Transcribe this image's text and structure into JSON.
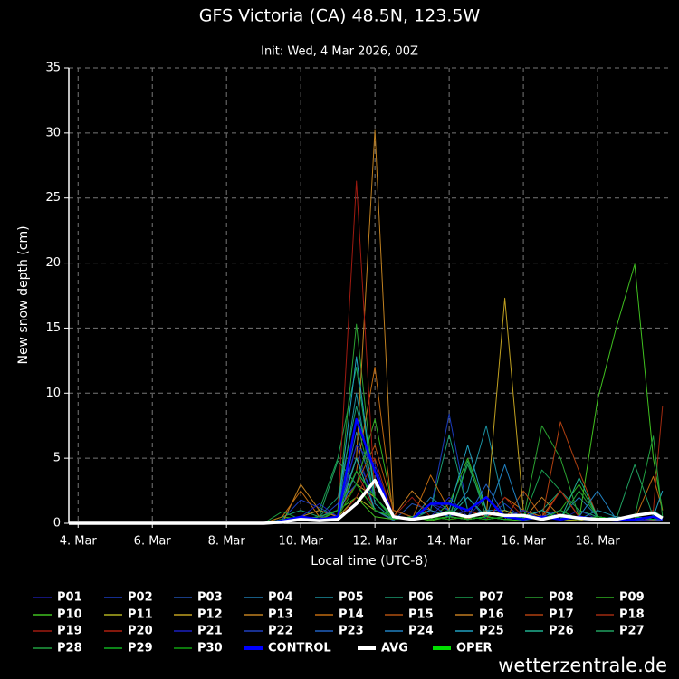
{
  "chart_data": {
    "type": "line",
    "title": "GFS Victoria (CA) 48.5N, 123.5W",
    "subtitle": "Init: Wed, 4 Mar 2026, 00Z",
    "x_label": "Local time (UTC-8)",
    "y_label": "New snow depth (cm)",
    "watermark": "wetterzentrale.de",
    "x": [
      3.75,
      9,
      9.5,
      10,
      10.5,
      11,
      11.5,
      12,
      12.5,
      13,
      13.5,
      14,
      14.5,
      15,
      15.5,
      16,
      16.5,
      17,
      17.5,
      18,
      18.5,
      19,
      19.5,
      19.75
    ],
    "xlim": [
      3.75,
      19.95
    ],
    "xticks": [
      {
        "value": 4,
        "label": "4. Mar"
      },
      {
        "value": 6,
        "label": "6. Mar"
      },
      {
        "value": 8,
        "label": "8. Mar"
      },
      {
        "value": 10,
        "label": "10. Mar"
      },
      {
        "value": 12,
        "label": "12. Mar"
      },
      {
        "value": 14,
        "label": "14. Mar"
      },
      {
        "value": 16,
        "label": "16. Mar"
      },
      {
        "value": 18,
        "label": "18. Mar"
      }
    ],
    "ylim": [
      0,
      35
    ],
    "yticks": [
      0,
      5,
      10,
      15,
      20,
      25,
      30,
      35
    ],
    "grid": true,
    "series": [
      {
        "name": "P01",
        "color": "#1a1aa0",
        "values": [
          0,
          0,
          0.2,
          0.5,
          0.3,
          1,
          6,
          1,
          0.5,
          0.3,
          1.5,
          1,
          0.5,
          2,
          0.5,
          0.3,
          0.5,
          0.3,
          1,
          0.3,
          0.2,
          0.5,
          0.3,
          0.5
        ]
      },
      {
        "name": "P02",
        "color": "#1a3cc0",
        "values": [
          0,
          0,
          0.3,
          1.8,
          1.2,
          0.5,
          5,
          2,
          0.3,
          0.5,
          1,
          8.4,
          1,
          0.5,
          1.5,
          0.3,
          1,
          0.5,
          0.3,
          0.5,
          0.3,
          0.2,
          0.3,
          0.5
        ]
      },
      {
        "name": "P03",
        "color": "#2050b0",
        "values": [
          0,
          0,
          0,
          0.5,
          1,
          0.5,
          4,
          1,
          0.2,
          1.5,
          1,
          0.5,
          2,
          0.3,
          0.5,
          1,
          0.3,
          0.5,
          0.3,
          0.2,
          0.3,
          0.5,
          0.2,
          0.3
        ]
      },
      {
        "name": "P04",
        "color": "#1f7ab0",
        "values": [
          0,
          0,
          0.2,
          0.5,
          0.3,
          0.5,
          7,
          2,
          0.5,
          0.3,
          2,
          1,
          0.5,
          1,
          1,
          0.5,
          0.3,
          0.5,
          2,
          0.5,
          0.3,
          0.5,
          0.3,
          0.3
        ]
      },
      {
        "name": "P05",
        "color": "#1a90a0",
        "values": [
          0,
          0,
          0,
          0.3,
          0.5,
          1,
          10,
          1.5,
          0.3,
          0.5,
          1,
          0.5,
          2.5,
          7.5,
          1,
          0.5,
          0.3,
          0.5,
          0.3,
          1,
          0.5,
          0.3,
          0.5,
          0.3
        ]
      },
      {
        "name": "P06",
        "color": "#1a9a70",
        "values": [
          0,
          0,
          0.5,
          1,
          0.5,
          2,
          9,
          3,
          0.5,
          0.3,
          1,
          6.8,
          1,
          0.5,
          0.3,
          0.5,
          1,
          2.5,
          1,
          0.5,
          0.3,
          0.5,
          1,
          0.5
        ]
      },
      {
        "name": "P07",
        "color": "#1aa050",
        "values": [
          0,
          0,
          0.3,
          0.5,
          1,
          5,
          12,
          2,
          0.3,
          0.5,
          1,
          0.5,
          4.5,
          1,
          0.5,
          0.3,
          4.1,
          2.5,
          0.5,
          0.3,
          0.5,
          0.3,
          0.5,
          0.3
        ]
      },
      {
        "name": "P08",
        "color": "#2aa030",
        "values": [
          0,
          0,
          0.2,
          0.3,
          0.5,
          1,
          15.3,
          2,
          0.5,
          0.3,
          0.5,
          1,
          0.5,
          0.3,
          0.5,
          0.3,
          7.5,
          5,
          0.5,
          0.3,
          0.5,
          0.3,
          0.5,
          0.3
        ]
      },
      {
        "name": "P09",
        "color": "#30b020",
        "values": [
          0,
          0,
          0.5,
          0.3,
          0.5,
          1,
          3,
          8,
          1,
          0.5,
          0.3,
          1.5,
          5,
          1,
          0.5,
          0.3,
          0.5,
          1,
          3,
          0.5,
          0.3,
          0.5,
          0.3,
          0.2
        ]
      },
      {
        "name": "P10",
        "color": "#40c020",
        "values": [
          0,
          0,
          0.3,
          0.5,
          0.2,
          1,
          2,
          0.5,
          0.3,
          0.5,
          0.2,
          0.5,
          0.3,
          0.5,
          0.3,
          0.2,
          0.5,
          0.3,
          0.2,
          9.5,
          15,
          19.9,
          5,
          1
        ]
      },
      {
        "name": "P11",
        "color": "#b0b020",
        "values": [
          0,
          0,
          0.2,
          0.5,
          0.3,
          0.5,
          2,
          1,
          0.5,
          0.3,
          0.5,
          1,
          0.3,
          0.5,
          1,
          0.3,
          0.5,
          0.3,
          0.2,
          0.5,
          0.3,
          0.2,
          0.5,
          0.3
        ]
      },
      {
        "name": "P12",
        "color": "#c0a020",
        "values": [
          0,
          0,
          0.2,
          0.3,
          0.5,
          1,
          3,
          2,
          0.3,
          0.5,
          0.3,
          0.5,
          1,
          0.5,
          17.3,
          1,
          0.5,
          0.3,
          0.5,
          0.3,
          0.2,
          0.3,
          0.5,
          0.3
        ]
      },
      {
        "name": "P13",
        "color": "#c08020",
        "values": [
          0,
          0,
          0,
          3,
          1,
          0.5,
          5,
          30.2,
          1,
          0.5,
          0.3,
          0.5,
          0.3,
          1,
          0.5,
          0.3,
          0.5,
          0.3,
          0.5,
          0.3,
          0.2,
          0.3,
          0.2,
          0.3
        ]
      },
      {
        "name": "P14",
        "color": "#c06a10",
        "values": [
          0,
          0,
          0.5,
          2.5,
          0.5,
          1,
          4,
          12,
          0.5,
          0.3,
          3.7,
          1,
          0.5,
          0.3,
          2,
          1,
          0.5,
          2.5,
          0.5,
          0.3,
          0.5,
          0.3,
          3.6,
          1
        ]
      },
      {
        "name": "P15",
        "color": "#b05010",
        "values": [
          0,
          0,
          0.3,
          0.5,
          0.3,
          0.5,
          3,
          6,
          1,
          0.5,
          0.3,
          0.5,
          0.3,
          0.5,
          0.3,
          2.5,
          0.5,
          0.3,
          0.5,
          0.3,
          0.2,
          0.3,
          0.5,
          0.3
        ]
      },
      {
        "name": "P16",
        "color": "#c07a20",
        "values": [
          0,
          0,
          0.2,
          0.5,
          1,
          0.5,
          4,
          2,
          0.5,
          2.5,
          1,
          0.5,
          0.3,
          1,
          0.5,
          0.3,
          2,
          0.5,
          0.3,
          0.5,
          0.2,
          0.3,
          0.5,
          0.3
        ]
      },
      {
        "name": "P17",
        "color": "#b04010",
        "values": [
          0,
          0,
          0,
          0.3,
          0.5,
          1,
          3,
          1,
          0.5,
          0.3,
          0.5,
          0.3,
          0.5,
          0.3,
          0.5,
          1,
          0.3,
          7.8,
          4,
          0.5,
          0.3,
          0.5,
          0.3,
          0.5
        ]
      },
      {
        "name": "P18",
        "color": "#a02a10",
        "values": [
          0,
          0,
          0.2,
          0.3,
          0.5,
          0.3,
          2,
          5,
          0.5,
          0.3,
          0.5,
          0.3,
          0.5,
          0.3,
          0.5,
          0.3,
          0.5,
          0.3,
          0.5,
          0.3,
          0.2,
          0.5,
          1,
          9
        ]
      },
      {
        "name": "P19",
        "color": "#a01a10",
        "values": [
          0,
          0,
          0.3,
          0.5,
          0.3,
          1,
          26.3,
          2,
          0.5,
          2,
          0.5,
          0.3,
          0.5,
          0.3,
          2,
          0.5,
          0.3,
          0.5,
          0.3,
          0.5,
          0.3,
          0.2,
          0.3,
          0.5
        ]
      },
      {
        "name": "P20",
        "color": "#b02010",
        "values": [
          0,
          0,
          0.2,
          0.3,
          0.5,
          1,
          4,
          1,
          0.3,
          0.5,
          0.3,
          0.5,
          1,
          0.5,
          0.3,
          0.5,
          0.3,
          2.5,
          0.5,
          0.3,
          0.5,
          0.3,
          0.5,
          0.3
        ]
      },
      {
        "name": "P21",
        "color": "#1a20c0",
        "values": [
          0,
          0,
          0.2,
          0.5,
          1.5,
          0.5,
          6,
          4.5,
          0.5,
          0.3,
          0.5,
          2,
          0.5,
          0.3,
          0.5,
          1,
          0.3,
          0.5,
          0.3,
          0.5,
          0.3,
          0.2,
          0.3,
          0.5
        ]
      },
      {
        "name": "P22",
        "color": "#2040c0",
        "values": [
          0,
          0,
          0.3,
          0.5,
          0.3,
          1.5,
          3,
          1,
          0.5,
          0.3,
          1.5,
          0.5,
          1,
          2,
          0.5,
          0.3,
          0.5,
          0.3,
          0.5,
          0.3,
          0.2,
          0.5,
          0.3,
          0.2
        ]
      },
      {
        "name": "P23",
        "color": "#2060c0",
        "values": [
          0,
          0,
          0.2,
          0.3,
          0.5,
          1,
          5,
          1,
          0.5,
          0.3,
          0.5,
          1,
          0.5,
          3,
          0.5,
          0.3,
          0.5,
          1,
          0.3,
          0.5,
          0.3,
          0.2,
          0.5,
          0.3
        ]
      },
      {
        "name": "P24",
        "color": "#2080c0",
        "values": [
          0,
          0,
          0,
          0.5,
          0.3,
          0.5,
          4,
          2,
          0.3,
          0.5,
          1,
          0.5,
          0.3,
          0.5,
          4.5,
          0.3,
          0.5,
          0.3,
          0.5,
          2.5,
          0.3,
          0.5,
          0.3,
          0.5
        ]
      },
      {
        "name": "P25",
        "color": "#20a0c0",
        "values": [
          0,
          0,
          0.2,
          0.3,
          0.5,
          1,
          12.8,
          2,
          0.5,
          0.3,
          0.5,
          1,
          6,
          1,
          0.5,
          0.3,
          0.5,
          0.3,
          0.5,
          0.3,
          0.5,
          0.3,
          0.5,
          2.5
        ]
      },
      {
        "name": "P26",
        "color": "#20b090",
        "values": [
          0,
          0,
          0.3,
          0.5,
          0.3,
          0.5,
          5,
          1,
          0.3,
          0.5,
          0.3,
          0.5,
          2,
          0.5,
          0.3,
          0.5,
          1,
          0.3,
          3.5,
          0.5,
          0.3,
          0.5,
          0.3,
          0.5
        ]
      },
      {
        "name": "P27",
        "color": "#20a060",
        "values": [
          0,
          0,
          0.2,
          0.3,
          0.5,
          4.8,
          3,
          1,
          0.5,
          0.3,
          0.5,
          0.3,
          4.8,
          0.5,
          0.3,
          0.5,
          0.3,
          0.5,
          0.3,
          0.5,
          0.3,
          4.5,
          0.5,
          0.3
        ]
      },
      {
        "name": "P28",
        "color": "#20a040",
        "values": [
          0,
          0,
          0.9,
          0.3,
          0.5,
          1,
          8,
          2,
          0.5,
          0.3,
          0.5,
          1,
          0.5,
          0.3,
          0.5,
          0.3,
          0.5,
          0.3,
          2.5,
          0.5,
          0.3,
          0.5,
          6.7,
          0.5
        ]
      },
      {
        "name": "P29",
        "color": "#10b020",
        "values": [
          0,
          0,
          0.3,
          0.5,
          0.3,
          1,
          4,
          2,
          0.3,
          0.5,
          0.3,
          0.5,
          0.3,
          0.5,
          0.3,
          0.5,
          0.3,
          1,
          0.3,
          0.5,
          0.3,
          0.5,
          0.3,
          0.5
        ]
      },
      {
        "name": "P30",
        "color": "#10a010",
        "values": [
          0,
          0,
          0.2,
          0.5,
          0.3,
          0.5,
          3,
          1,
          0.5,
          0.3,
          0.5,
          0.3,
          0.5,
          0.3,
          0.5,
          0.3,
          0.5,
          0.3,
          0.5,
          0.3,
          0.2,
          0.3,
          0.5,
          0.3
        ]
      },
      {
        "name": "CONTROL",
        "color": "#0000ff",
        "values": [
          0,
          0,
          0.2,
          0.5,
          0.3,
          0.5,
          8,
          4,
          0.5,
          0.3,
          1.5,
          1.5,
          1,
          2,
          0.5,
          0.3,
          0.5,
          0.3,
          0.5,
          0.3,
          0.2,
          0.3,
          0.5,
          0.3
        ]
      },
      {
        "name": "AVG",
        "color": "#ffffff",
        "values": [
          0,
          0,
          0.1,
          0.3,
          0.2,
          0.3,
          1.5,
          3.3,
          0.5,
          0.3,
          0.5,
          0.8,
          0.5,
          0.8,
          0.6,
          0.6,
          0.3,
          0.6,
          0.4,
          0.3,
          0.3,
          0.6,
          0.8,
          0.4
        ]
      },
      {
        "name": "OPER",
        "color": "#00e000",
        "values": [
          null,
          null,
          null,
          null,
          null,
          null,
          null,
          null,
          null,
          null,
          null,
          null,
          null,
          null,
          null,
          null,
          null,
          null,
          null,
          null,
          null,
          null,
          null,
          null
        ]
      }
    ]
  }
}
